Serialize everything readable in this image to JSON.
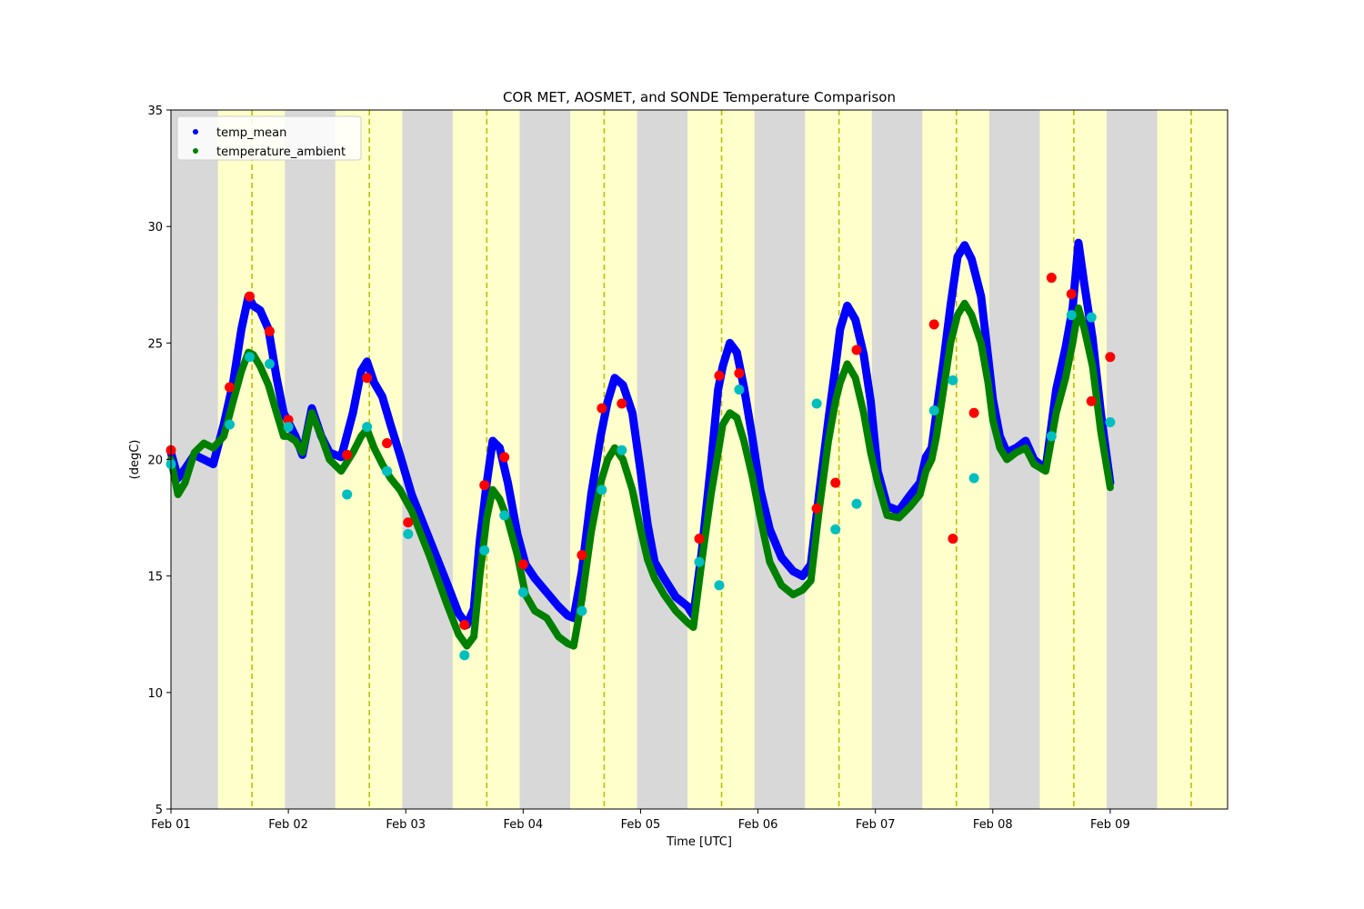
{
  "chart_data": {
    "type": "scatter",
    "title": "COR MET, AOSMET, and SONDE Temperature Comparison",
    "xlabel": "Time [UTC]",
    "ylabel": "(degC)",
    "xlim": [
      0,
      9
    ],
    "ylim": [
      5,
      35
    ],
    "x_unit": "days since Feb 01 00:00 UTC",
    "x_ticks": [
      {
        "value": 0,
        "label": "Feb 01"
      },
      {
        "value": 1,
        "label": "Feb 02"
      },
      {
        "value": 2,
        "label": "Feb 03"
      },
      {
        "value": 3,
        "label": "Feb 04"
      },
      {
        "value": 4,
        "label": "Feb 05"
      },
      {
        "value": 5,
        "label": "Feb 06"
      },
      {
        "value": 6,
        "label": "Feb 07"
      },
      {
        "value": 7,
        "label": "Feb 08"
      },
      {
        "value": 8,
        "label": "Feb 09"
      }
    ],
    "y_ticks": [
      {
        "value": 5,
        "label": "5"
      },
      {
        "value": 10,
        "label": "10"
      },
      {
        "value": 15,
        "label": "15"
      },
      {
        "value": 20,
        "label": "20"
      },
      {
        "value": 25,
        "label": "25"
      },
      {
        "value": 30,
        "label": "30"
      },
      {
        "value": 35,
        "label": "35"
      }
    ],
    "legend": {
      "placement": "top-left",
      "entries": [
        {
          "name": "temp_mean",
          "color": "#0000ff"
        },
        {
          "name": "temperature_ambient",
          "color": "#008000"
        }
      ]
    },
    "background_colors": {
      "night": "#d8d8d8",
      "day": "#ffffcc",
      "noon_line": "#bfbf00"
    },
    "day_bands": [
      [
        0.4,
        0.97
      ],
      [
        1.4,
        1.97
      ],
      [
        2.4,
        2.97
      ],
      [
        3.4,
        3.97
      ],
      [
        4.4,
        4.97
      ],
      [
        5.4,
        5.97
      ],
      [
        6.4,
        6.97
      ],
      [
        7.4,
        7.97
      ],
      [
        8.4,
        9.0
      ]
    ],
    "noon_lines": [
      0.69,
      1.69,
      2.69,
      3.69,
      4.69,
      5.69,
      6.69,
      7.69,
      8.69
    ],
    "series": [
      {
        "name": "temp_mean",
        "color": "#0000ff",
        "x": [
          0.0,
          0.06,
          0.12,
          0.2,
          0.28,
          0.36,
          0.45,
          0.53,
          0.6,
          0.66,
          0.7,
          0.76,
          0.83,
          0.9,
          0.96,
          1.0,
          1.06,
          1.12,
          1.2,
          1.28,
          1.35,
          1.45,
          1.55,
          1.62,
          1.67,
          1.73,
          1.8,
          1.87,
          1.95,
          2.05,
          2.2,
          2.35,
          2.45,
          2.52,
          2.58,
          2.63,
          2.69,
          2.74,
          2.8,
          2.87,
          2.95,
          3.02,
          3.1,
          3.2,
          3.3,
          3.38,
          3.43,
          3.5,
          3.58,
          3.66,
          3.72,
          3.78,
          3.85,
          3.93,
          4.0,
          4.06,
          4.12,
          4.2,
          4.3,
          4.4,
          4.45,
          4.52,
          4.6,
          4.66,
          4.7,
          4.76,
          4.82,
          4.88,
          4.95,
          5.02,
          5.1,
          5.2,
          5.3,
          5.38,
          5.45,
          5.52,
          5.6,
          5.66,
          5.7,
          5.76,
          5.83,
          5.9,
          5.96,
          6.02,
          6.1,
          6.2,
          6.3,
          6.38,
          6.43,
          6.48,
          6.52,
          6.58,
          6.64,
          6.7,
          6.76,
          6.82,
          6.9,
          6.96,
          7.0,
          7.06,
          7.12,
          7.2,
          7.28,
          7.35,
          7.45,
          7.54,
          7.62,
          7.68,
          7.73,
          7.78,
          7.85,
          7.92,
          8.0
        ],
        "y": [
          20.3,
          19.2,
          19.6,
          20.2,
          20.0,
          19.8,
          21.5,
          23.3,
          25.6,
          27.0,
          26.6,
          26.4,
          25.6,
          23.5,
          22.0,
          21.6,
          21.0,
          20.2,
          22.2,
          21.0,
          20.3,
          20.1,
          22.0,
          23.8,
          24.2,
          23.3,
          22.7,
          21.5,
          20.2,
          18.5,
          16.6,
          14.7,
          13.4,
          12.9,
          13.6,
          16.5,
          19.0,
          20.8,
          20.5,
          19.0,
          16.8,
          15.5,
          14.9,
          14.3,
          13.7,
          13.3,
          13.2,
          15.2,
          18.5,
          21.0,
          22.5,
          23.5,
          23.2,
          22.0,
          19.5,
          17.2,
          15.6,
          14.9,
          14.1,
          13.7,
          13.3,
          16.0,
          19.8,
          23.0,
          24.0,
          25.0,
          24.6,
          23.1,
          21.0,
          18.7,
          17.0,
          15.8,
          15.2,
          15.0,
          15.5,
          18.5,
          21.7,
          24.0,
          25.6,
          26.6,
          26.0,
          24.5,
          22.5,
          19.5,
          18.0,
          17.8,
          18.5,
          19.0,
          20.1,
          20.5,
          22.0,
          24.2,
          26.6,
          28.7,
          29.2,
          28.6,
          27.0,
          24.4,
          22.6,
          21.0,
          20.3,
          20.5,
          20.8,
          20.0,
          19.6,
          23.0,
          24.8,
          26.5,
          29.3,
          27.5,
          25.2,
          22.0,
          19.0
        ]
      },
      {
        "name": "temperature_ambient",
        "color": "#008000",
        "x": [
          0.0,
          0.06,
          0.12,
          0.2,
          0.28,
          0.36,
          0.45,
          0.53,
          0.6,
          0.66,
          0.7,
          0.76,
          0.83,
          0.9,
          0.96,
          1.0,
          1.06,
          1.12,
          1.2,
          1.28,
          1.35,
          1.45,
          1.55,
          1.62,
          1.67,
          1.73,
          1.8,
          1.87,
          1.95,
          2.05,
          2.2,
          2.35,
          2.45,
          2.52,
          2.58,
          2.63,
          2.69,
          2.74,
          2.8,
          2.87,
          2.95,
          3.02,
          3.1,
          3.2,
          3.3,
          3.38,
          3.43,
          3.5,
          3.58,
          3.66,
          3.72,
          3.78,
          3.85,
          3.93,
          4.0,
          4.06,
          4.12,
          4.2,
          4.3,
          4.4,
          4.45,
          4.52,
          4.6,
          4.66,
          4.7,
          4.76,
          4.82,
          4.88,
          4.95,
          5.02,
          5.1,
          5.2,
          5.3,
          5.38,
          5.45,
          5.52,
          5.6,
          5.66,
          5.7,
          5.76,
          5.83,
          5.9,
          5.96,
          6.02,
          6.1,
          6.2,
          6.3,
          6.38,
          6.43,
          6.48,
          6.52,
          6.58,
          6.64,
          6.7,
          6.76,
          6.82,
          6.9,
          6.96,
          7.0,
          7.06,
          7.12,
          7.2,
          7.28,
          7.35,
          7.45,
          7.54,
          7.62,
          7.68,
          7.73,
          7.78,
          7.85,
          7.92,
          8.0
        ],
        "y": [
          20.0,
          18.5,
          19.0,
          20.3,
          20.7,
          20.5,
          21.0,
          22.5,
          23.8,
          24.6,
          24.5,
          24.0,
          23.2,
          22.0,
          21.0,
          21.0,
          20.8,
          20.3,
          22.0,
          21.0,
          20.0,
          19.5,
          20.3,
          21.0,
          21.3,
          20.5,
          19.8,
          19.2,
          18.7,
          17.8,
          15.9,
          13.8,
          12.5,
          12.0,
          12.4,
          15.0,
          17.5,
          18.7,
          18.3,
          17.4,
          15.9,
          14.2,
          13.5,
          13.2,
          12.4,
          12.1,
          12.0,
          14.0,
          16.9,
          19.0,
          20.0,
          20.5,
          20.0,
          18.7,
          17.0,
          15.7,
          14.9,
          14.2,
          13.5,
          13.0,
          12.8,
          15.6,
          18.5,
          20.3,
          21.5,
          22.0,
          21.8,
          20.8,
          19.3,
          17.5,
          15.6,
          14.6,
          14.2,
          14.4,
          14.8,
          17.8,
          20.8,
          22.5,
          23.3,
          24.1,
          23.5,
          22.0,
          20.3,
          19.0,
          17.6,
          17.5,
          18.0,
          18.5,
          19.5,
          20.0,
          21.0,
          23.0,
          25.0,
          26.2,
          26.7,
          26.2,
          25.0,
          23.3,
          21.7,
          20.5,
          20.0,
          20.3,
          20.5,
          19.8,
          19.5,
          22.0,
          23.5,
          25.0,
          26.5,
          25.6,
          24.0,
          21.2,
          18.8
        ]
      },
      {
        "name": "",
        "color": "#ff0000",
        "x": [
          0.0,
          0.5,
          0.67,
          0.84,
          1.0,
          1.5,
          1.67,
          1.84,
          2.02,
          2.5,
          2.67,
          2.84,
          3.0,
          3.5,
          3.67,
          3.84,
          4.5,
          4.67,
          4.84,
          5.5,
          5.66,
          5.84,
          6.5,
          6.66,
          6.84,
          7.5,
          7.67,
          7.84,
          8.0
        ],
        "y": [
          20.4,
          23.1,
          27.0,
          25.5,
          21.7,
          20.2,
          23.5,
          20.7,
          17.3,
          12.9,
          18.9,
          20.1,
          15.5,
          15.9,
          22.2,
          22.4,
          16.6,
          23.6,
          23.7,
          17.9,
          19.0,
          24.7,
          25.8,
          16.6,
          22.0,
          27.8,
          27.1,
          22.5,
          24.4
        ]
      },
      {
        "name": "",
        "color": "#00bfbf",
        "x": [
          0.0,
          0.5,
          0.67,
          0.84,
          1.0,
          1.5,
          1.67,
          1.84,
          2.02,
          2.5,
          2.67,
          2.84,
          3.0,
          3.5,
          3.67,
          3.84,
          4.5,
          4.67,
          4.84,
          5.5,
          5.66,
          5.84,
          6.5,
          6.66,
          6.84,
          7.5,
          7.67,
          7.84,
          8.0
        ],
        "y": [
          19.8,
          21.5,
          24.4,
          24.1,
          21.4,
          18.5,
          21.4,
          19.5,
          16.8,
          11.6,
          16.1,
          17.6,
          14.3,
          13.5,
          18.7,
          20.4,
          15.6,
          14.6,
          23.0,
          22.4,
          17.0,
          18.1,
          22.1,
          23.4,
          19.2,
          21.0,
          26.2,
          26.1,
          21.6
        ]
      }
    ]
  }
}
